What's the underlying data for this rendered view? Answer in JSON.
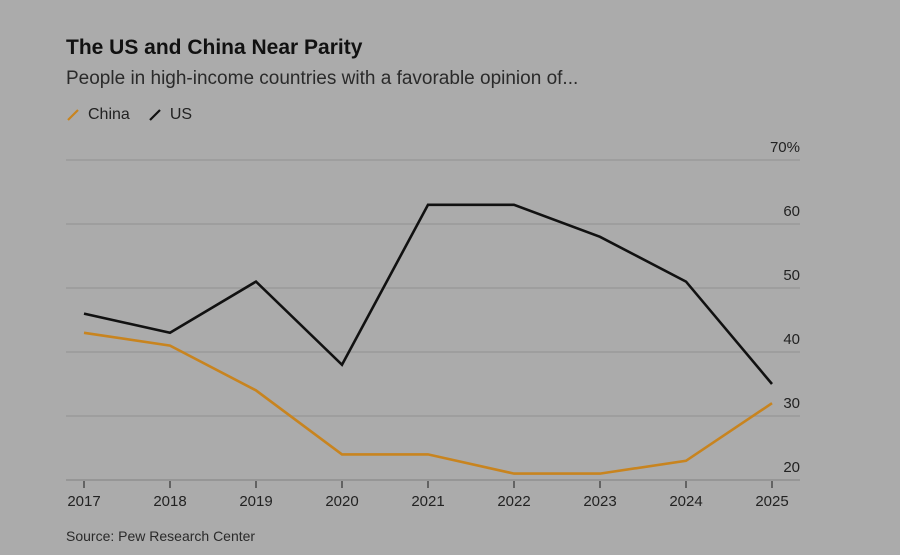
{
  "title": "The US and China Near Parity",
  "subtitle": "People in high-income countries with a favorable opinion of...",
  "source": "Source: Pew Research Center",
  "colors": {
    "background": "#ababab",
    "china": "#c8841f",
    "us": "#111111",
    "grid": "#9a9a9a"
  },
  "legend": [
    {
      "label": "China",
      "color": "#c8841f",
      "icon": "slash-line-icon"
    },
    {
      "label": "US",
      "color": "#111111",
      "icon": "slash-line-icon"
    }
  ],
  "chart_data": {
    "type": "line",
    "title": "The US and China Near Parity",
    "subtitle": "People in high-income countries with a favorable opinion of...",
    "xlabel": "",
    "ylabel": "",
    "x": [
      "2017",
      "2018",
      "2019",
      "2020",
      "2021",
      "2022",
      "2023",
      "2024",
      "2025"
    ],
    "series": [
      {
        "name": "China",
        "color": "#c8841f",
        "values": [
          43,
          41,
          34,
          24,
          24,
          21,
          21,
          23,
          32
        ]
      },
      {
        "name": "US",
        "color": "#111111",
        "values": [
          46,
          43,
          51,
          38,
          63,
          63,
          58,
          51,
          35
        ]
      }
    ],
    "ylim": [
      20,
      70
    ],
    "yticks": [
      20,
      30,
      40,
      50,
      60,
      70
    ],
    "ytick_labels": [
      "20",
      "30",
      "40",
      "50",
      "60",
      "70%"
    ],
    "y_axis_side": "right",
    "grid": true,
    "legend_position": "top-left",
    "source": "Source: Pew Research Center"
  }
}
